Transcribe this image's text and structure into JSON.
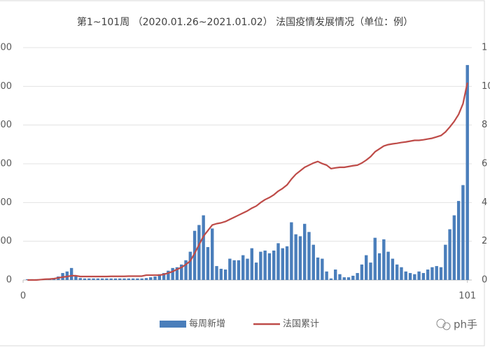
{
  "chart_data": {
    "type": "bar-line",
    "title": "第1~101周 （2020.01.26~2021.01.02） 法国疫情发展情况（单位：例）",
    "watermark": "ph手",
    "x": [
      1,
      2,
      3,
      4,
      5,
      6,
      7,
      8,
      9,
      10,
      11,
      12,
      13,
      14,
      15,
      16,
      17,
      18,
      19,
      20,
      21,
      22,
      23,
      24,
      25,
      26,
      27,
      28,
      29,
      30,
      31,
      32,
      33,
      34,
      35,
      36,
      37,
      38,
      39,
      40,
      41,
      42,
      43,
      44,
      45,
      46,
      47,
      48,
      49,
      50,
      51,
      52,
      53,
      54,
      55,
      56,
      57,
      58,
      59,
      60,
      61,
      62,
      63,
      64,
      65,
      66,
      67,
      68,
      69,
      70,
      71,
      72,
      73,
      74,
      75,
      76,
      77,
      78,
      79,
      80,
      81,
      82,
      83,
      84,
      85,
      86,
      87,
      88,
      89,
      90,
      91,
      92,
      93,
      94,
      95,
      96,
      97,
      98,
      99,
      100,
      101
    ],
    "xlim": [
      0,
      102
    ],
    "xticks": [
      0,
      101
    ],
    "ylim": [
      0,
      6000
    ],
    "yticks": [
      0,
      {
        "value": 1000,
        "label": "000"
      },
      {
        "value": 2000,
        "label": "000"
      },
      {
        "value": 3000,
        "label": "000"
      },
      {
        "value": 4000,
        "label": "000"
      },
      {
        "value": 5000,
        "label": "000"
      },
      {
        "value": 6000,
        "label": "000"
      }
    ],
    "y2lim": [
      0,
      120
    ],
    "y2ticks": [
      0,
      {
        "value": 20,
        "label": "2"
      },
      {
        "value": 40,
        "label": "4"
      },
      {
        "value": 60,
        "label": "6"
      },
      {
        "value": 80,
        "label": "8"
      },
      {
        "value": 100,
        "label": "10"
      },
      {
        "value": 120,
        "label": "1"
      }
    ],
    "grid": true,
    "legend": "bottom",
    "series": [
      {
        "name": "每周新增",
        "type": "bar",
        "color": "#4a7ebb",
        "values": [
          20,
          20,
          20,
          20,
          20,
          40,
          50,
          90,
          180,
          220,
          310,
          110,
          50,
          40,
          40,
          40,
          40,
          40,
          40,
          40,
          40,
          40,
          40,
          40,
          40,
          40,
          40,
          50,
          70,
          90,
          150,
          180,
          240,
          310,
          330,
          400,
          510,
          730,
          1270,
          1420,
          1670,
          850,
          1330,
          360,
          290,
          270,
          550,
          510,
          510,
          640,
          550,
          820,
          450,
          730,
          760,
          690,
          760,
          950,
          820,
          870,
          1490,
          1180,
          1130,
          1450,
          1240,
          910,
          580,
          550,
          220,
          40,
          270,
          150,
          70,
          70,
          110,
          180,
          400,
          640,
          450,
          1090,
          690,
          1050,
          730,
          550,
          400,
          330,
          220,
          180,
          150,
          220,
          180,
          270,
          330,
          360,
          330,
          910,
          1310,
          1670,
          2040,
          2450,
          5550
        ]
      },
      {
        "name": "法国累计",
        "type": "line",
        "axis": "y2",
        "color": "#be4b48",
        "values": [
          0,
          0,
          0,
          0.2,
          0.4,
          0.5,
          0.7,
          1.1,
          1.5,
          1.8,
          2.2,
          2.2,
          1.8,
          1.8,
          1.8,
          1.8,
          1.8,
          1.8,
          1.8,
          1.9,
          1.9,
          1.9,
          1.9,
          2,
          2,
          2,
          2,
          2.5,
          2.5,
          2.5,
          2.5,
          2.9,
          3.6,
          4.4,
          5.5,
          6.5,
          8,
          9.8,
          13.8,
          18.2,
          22.6,
          25.5,
          28.4,
          29.1,
          29.5,
          30.2,
          31.3,
          32.4,
          33.5,
          34.6,
          35.7,
          37.1,
          38.2,
          40,
          41.5,
          42.6,
          44,
          45.9,
          47.3,
          49.1,
          52.1,
          54.6,
          56.4,
          58.2,
          59.3,
          60.4,
          61.2,
          60.1,
          59.3,
          57.5,
          57.9,
          58.2,
          58.2,
          58.6,
          59,
          59.3,
          60.4,
          61.9,
          63.7,
          66.2,
          67.7,
          69.2,
          69.9,
          70.3,
          70.6,
          71,
          71.3,
          71.7,
          72.1,
          72.1,
          72.4,
          72.8,
          73.2,
          73.9,
          74.6,
          76.4,
          79,
          81.9,
          85.5,
          91,
          101.9
        ]
      }
    ]
  }
}
